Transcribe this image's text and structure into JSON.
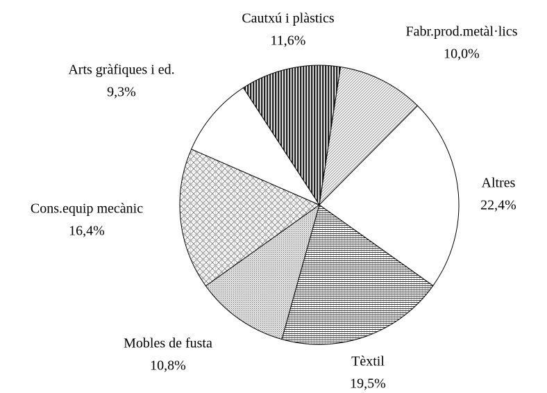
{
  "chart_data": {
    "type": "pie",
    "categories": [
      "Cautxú i plàstics",
      "Fabr.prod.metàl·lics",
      "Altres",
      "Tèxtil",
      "Mobles de fusta",
      "Cons.equip mecànic",
      "Arts gràfiques i ed."
    ],
    "values": [
      11.6,
      10.0,
      22.4,
      19.5,
      10.8,
      16.4,
      9.3
    ],
    "value_labels": [
      "11,6%",
      "10,0%",
      "22,4%",
      "19,5%",
      "10,8%",
      "16,4%",
      "9,3%"
    ]
  }
}
